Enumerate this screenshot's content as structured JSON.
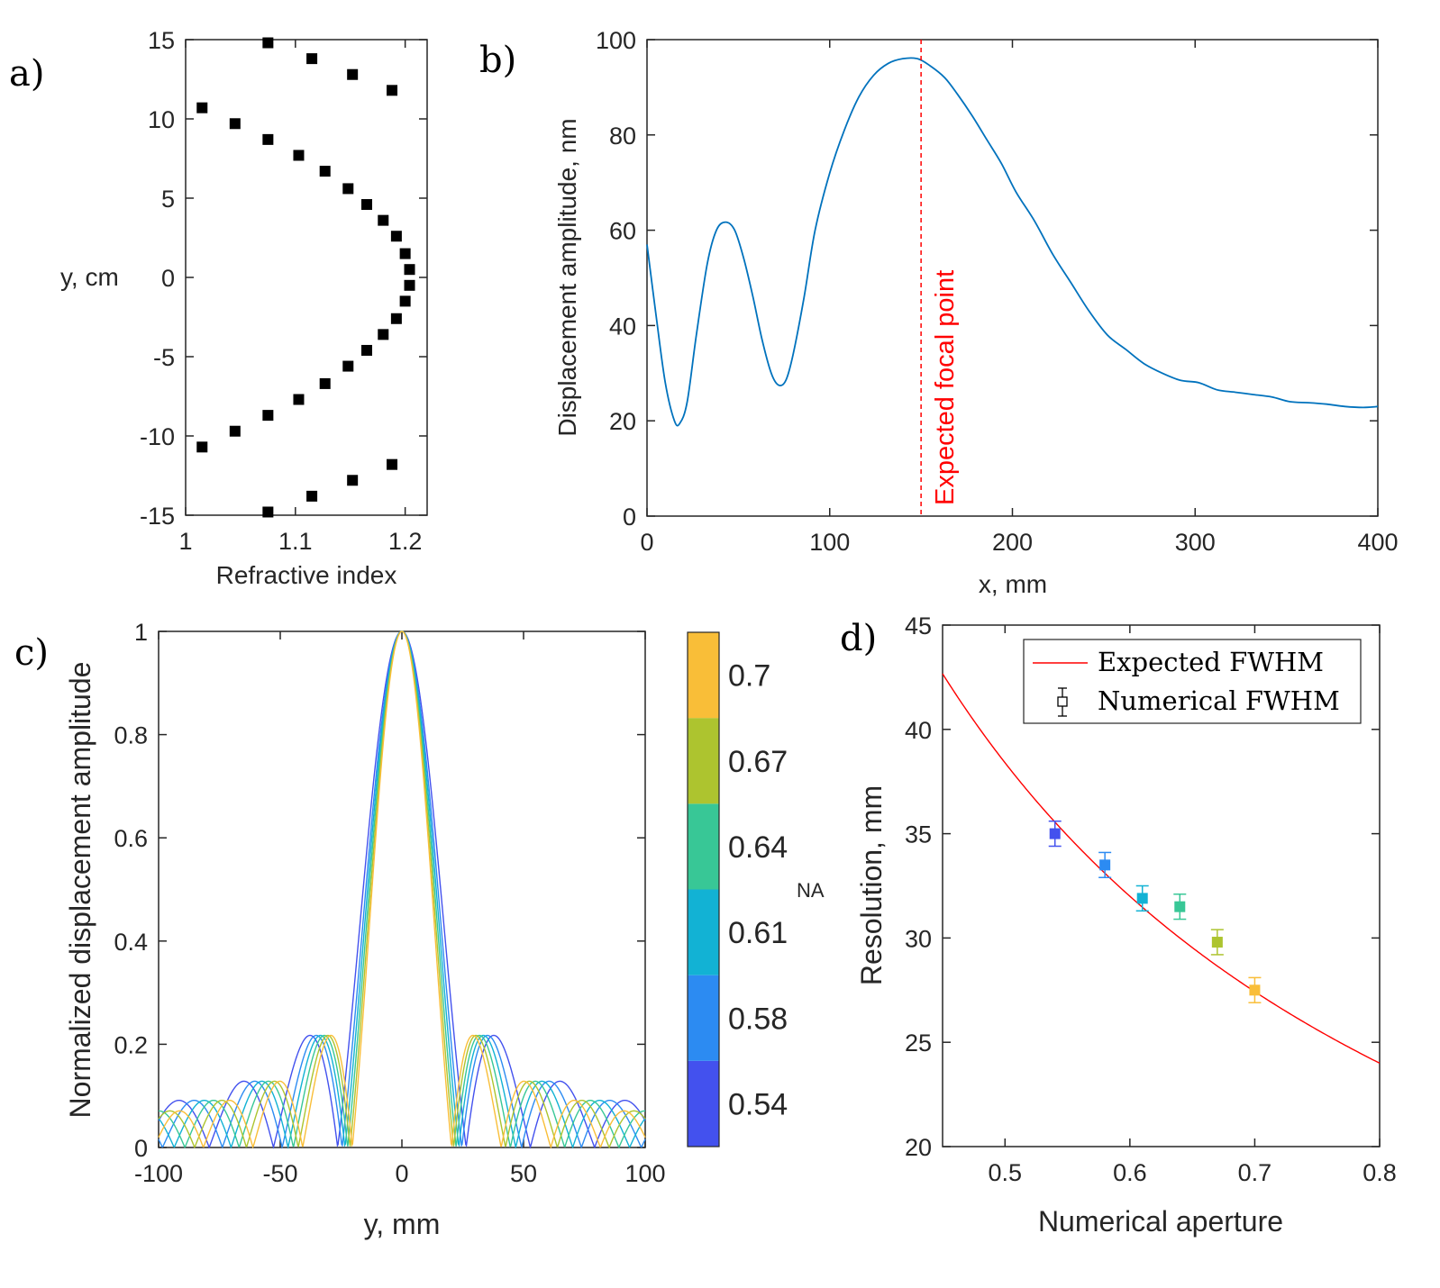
{
  "panels": {
    "a": {
      "label": "a)"
    },
    "b": {
      "label": "b)"
    },
    "c": {
      "label": "c)"
    },
    "d": {
      "label": "d)"
    }
  },
  "chart_data": [
    {
      "id": "a",
      "type": "scatter",
      "title": "",
      "xlabel": "Refractive index",
      "ylabel": "y, cm",
      "xlim": [
        1,
        1.22
      ],
      "ylim": [
        -15,
        15
      ],
      "xticks": [
        1,
        1.1,
        1.2
      ],
      "xtick_labels": [
        "1",
        "1.1",
        "1.2"
      ],
      "yticks": [
        -15,
        -10,
        -5,
        0,
        5,
        10,
        15
      ],
      "ytick_labels": [
        "-15",
        "-10",
        "-5",
        "0",
        "5",
        "10",
        "15"
      ],
      "marker_color": "#000000",
      "points": [
        [
          1.075,
          14.8
        ],
        [
          1.115,
          13.8
        ],
        [
          1.152,
          12.8
        ],
        [
          1.188,
          11.8
        ],
        [
          1.015,
          10.7
        ],
        [
          1.045,
          9.7
        ],
        [
          1.075,
          8.7
        ],
        [
          1.103,
          7.7
        ],
        [
          1.127,
          6.7
        ],
        [
          1.148,
          5.6
        ],
        [
          1.165,
          4.6
        ],
        [
          1.18,
          3.6
        ],
        [
          1.192,
          2.6
        ],
        [
          1.2,
          1.5
        ],
        [
          1.204,
          0.5
        ],
        [
          1.204,
          -0.5
        ],
        [
          1.2,
          -1.5
        ],
        [
          1.192,
          -2.6
        ],
        [
          1.18,
          -3.6
        ],
        [
          1.165,
          -4.6
        ],
        [
          1.148,
          -5.6
        ],
        [
          1.127,
          -6.7
        ],
        [
          1.103,
          -7.7
        ],
        [
          1.075,
          -8.7
        ],
        [
          1.045,
          -9.7
        ],
        [
          1.015,
          -10.7
        ],
        [
          1.188,
          -11.8
        ],
        [
          1.152,
          -12.8
        ],
        [
          1.115,
          -13.8
        ],
        [
          1.075,
          -14.8
        ]
      ]
    },
    {
      "id": "b",
      "type": "line",
      "title": "",
      "xlabel": "x, mm",
      "ylabel": "Displacement amplitude, nm",
      "xlim": [
        0,
        400
      ],
      "ylim": [
        0,
        100
      ],
      "xticks": [
        0,
        100,
        200,
        300,
        400
      ],
      "xtick_labels": [
        "0",
        "100",
        "200",
        "300",
        "400"
      ],
      "yticks": [
        0,
        20,
        40,
        60,
        80,
        100
      ],
      "ytick_labels": [
        "0",
        "20",
        "40",
        "60",
        "80",
        "100"
      ],
      "line_color": "#0072BD",
      "series": [
        {
          "name": "Displacement amplitude",
          "points": [
            [
              0,
              57
            ],
            [
              5,
              42
            ],
            [
              10,
              28
            ],
            [
              15,
              20
            ],
            [
              18,
              19.5
            ],
            [
              22,
              24
            ],
            [
              27,
              38
            ],
            [
              33,
              53
            ],
            [
              38,
              60
            ],
            [
              43,
              61.7
            ],
            [
              48,
              60
            ],
            [
              53,
              54
            ],
            [
              58,
              46
            ],
            [
              63,
              37
            ],
            [
              68,
              30
            ],
            [
              72,
              27.5
            ],
            [
              76,
              28.5
            ],
            [
              80,
              34
            ],
            [
              86,
              46
            ],
            [
              92,
              60
            ],
            [
              100,
              72
            ],
            [
              108,
              81
            ],
            [
              116,
              88
            ],
            [
              124,
              92.5
            ],
            [
              132,
              95
            ],
            [
              140,
              96
            ],
            [
              148,
              96
            ],
            [
              155,
              94.5
            ],
            [
              163,
              92
            ],
            [
              170,
              88.5
            ],
            [
              178,
              84
            ],
            [
              186,
              79
            ],
            [
              194,
              74
            ],
            [
              202,
              68
            ],
            [
              212,
              62
            ],
            [
              222,
              55
            ],
            [
              232,
              49
            ],
            [
              242,
              43
            ],
            [
              252,
              38
            ],
            [
              262,
              35
            ],
            [
              272,
              32
            ],
            [
              282,
              30
            ],
            [
              292,
              28.5
            ],
            [
              302,
              28
            ],
            [
              312,
              26.5
            ],
            [
              322,
              26
            ],
            [
              332,
              25.5
            ],
            [
              342,
              25
            ],
            [
              352,
              24
            ],
            [
              362,
              23.8
            ],
            [
              372,
              23.5
            ],
            [
              382,
              23
            ],
            [
              392,
              22.8
            ],
            [
              400,
              23
            ]
          ]
        }
      ],
      "annotations": [
        {
          "type": "vline",
          "x": 150,
          "color": "#FF0000",
          "style": "dashed",
          "text": "Expected focal point"
        }
      ]
    },
    {
      "id": "c",
      "type": "line",
      "title": "",
      "xlabel": "y, mm",
      "ylabel": "Normalized displacement amplitude",
      "xlim": [
        -100,
        100
      ],
      "ylim": [
        0,
        1
      ],
      "xticks": [
        -100,
        -50,
        0,
        50,
        100
      ],
      "xtick_labels": [
        "-100",
        "-50",
        "0",
        "50",
        "100"
      ],
      "yticks": [
        0,
        0.2,
        0.4,
        0.6,
        0.8,
        1
      ],
      "ytick_labels": [
        "0",
        "0.2",
        "0.4",
        "0.6",
        "0.8",
        "1"
      ],
      "model": "normalized |sin(k*y)/(k*y)| style beam profiles, k proportional to NA",
      "series": [
        {
          "name": "NA 0.54",
          "na": 0.54,
          "color": "#4351EE",
          "first_zero_mm": 26.4
        },
        {
          "name": "NA 0.58",
          "na": 0.58,
          "color": "#2C8BF2",
          "first_zero_mm": 24.6
        },
        {
          "name": "NA 0.61",
          "na": 0.61,
          "color": "#12B2D4",
          "first_zero_mm": 23.4
        },
        {
          "name": "NA 0.64",
          "na": 0.64,
          "color": "#38C796",
          "first_zero_mm": 22.3
        },
        {
          "name": "NA 0.67",
          "na": 0.67,
          "color": "#ADC42F",
          "first_zero_mm": 21.3
        },
        {
          "name": "NA 0.7",
          "na": 0.7,
          "color": "#F9BE38",
          "first_zero_mm": 20.4
        }
      ],
      "colorbar": {
        "label": "NA",
        "ticks": [
          "0.54",
          "0.58",
          "0.61",
          "0.64",
          "0.67",
          "0.7"
        ],
        "colors": [
          "#4351EE",
          "#2C8BF2",
          "#12B2D4",
          "#38C796",
          "#ADC42F",
          "#F9BE38"
        ]
      }
    },
    {
      "id": "d",
      "type": "scatter",
      "title": "",
      "xlabel": "Numerical aperture",
      "ylabel": "Resolution, mm",
      "xlim": [
        0.45,
        0.8
      ],
      "ylim": [
        20,
        45
      ],
      "xticks": [
        0.5,
        0.6,
        0.7,
        0.8
      ],
      "xtick_labels": [
        "0.5",
        "0.6",
        "0.7",
        "0.8"
      ],
      "yticks": [
        20,
        25,
        30,
        35,
        40,
        45
      ],
      "ytick_labels": [
        "20",
        "25",
        "30",
        "35",
        "40",
        "45"
      ],
      "legend": {
        "position": "top-right",
        "entries": [
          "Expected FWHM",
          "Numerical FWHM"
        ]
      },
      "expected_curve": {
        "name": "Expected FWHM",
        "color": "#FF0000",
        "formula": "19.2 / NA",
        "points": [
          [
            0.45,
            42.7
          ],
          [
            0.5,
            38.4
          ],
          [
            0.55,
            34.9
          ],
          [
            0.6,
            32.0
          ],
          [
            0.65,
            29.5
          ],
          [
            0.7,
            27.4
          ],
          [
            0.75,
            25.6
          ],
          [
            0.8,
            24.0
          ]
        ]
      },
      "numerical": {
        "name": "Numerical FWHM",
        "points": [
          {
            "na": 0.54,
            "value": 35.0,
            "err": 0.6,
            "color": "#4351EE"
          },
          {
            "na": 0.58,
            "value": 33.5,
            "err": 0.6,
            "color": "#2C8BF2"
          },
          {
            "na": 0.61,
            "value": 31.9,
            "err": 0.6,
            "color": "#12B2D4"
          },
          {
            "na": 0.64,
            "value": 31.5,
            "err": 0.6,
            "color": "#38C796"
          },
          {
            "na": 0.67,
            "value": 29.8,
            "err": 0.6,
            "color": "#ADC42F"
          },
          {
            "na": 0.7,
            "value": 27.5,
            "err": 0.6,
            "color": "#F9BE38"
          }
        ]
      }
    }
  ]
}
